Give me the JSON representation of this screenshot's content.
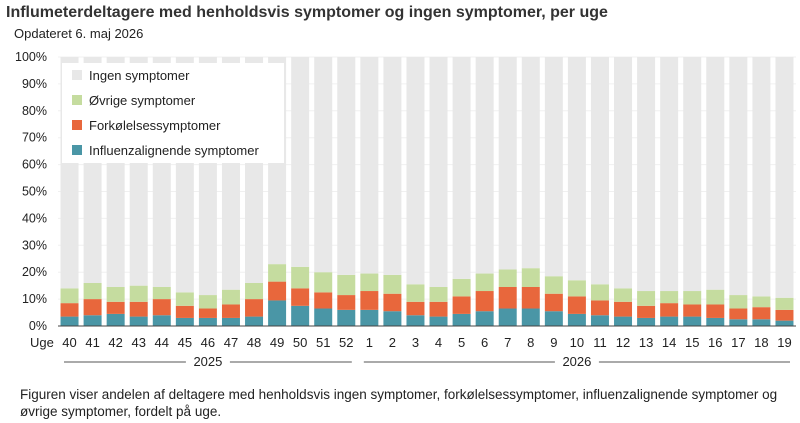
{
  "title": "Influmeterdeltagere med henholdsvis symptomer og ingen symptomer, per uge",
  "subtitle": "Opdateret 6. maj 2026",
  "caption": "Figuren viser andelen af deltagere med henholdsvis ingen symptomer, forkølelsessymptomer, influenzalignende symptomer og øvrige symptomer, fordelt på uge.",
  "colors": {
    "influenza": "#4a96a6",
    "cold": "#e8673c",
    "other": "#c5dc9f",
    "none": "#e8e8e8"
  },
  "chart_data": {
    "type": "bar",
    "stacked": true,
    "xlabel": "Uge",
    "ylabel": "",
    "ylim": [
      0,
      100
    ],
    "y_ticks": [
      "0%",
      "10%",
      "20%",
      "30%",
      "40%",
      "50%",
      "60%",
      "70%",
      "80%",
      "90%",
      "100%"
    ],
    "legend_position": "top-left",
    "categories": [
      "40",
      "41",
      "42",
      "43",
      "44",
      "45",
      "46",
      "47",
      "48",
      "49",
      "50",
      "51",
      "52",
      "1",
      "2",
      "3",
      "4",
      "5",
      "6",
      "7",
      "8",
      "9",
      "10",
      "11",
      "12",
      "13",
      "14",
      "15",
      "16",
      "17",
      "18",
      "19"
    ],
    "year_groups": [
      {
        "label": "2025",
        "from": 0,
        "to": 12
      },
      {
        "label": "2026",
        "from": 13,
        "to": 31
      }
    ],
    "series": [
      {
        "name": "Influenzalignende symptomer",
        "color_key": "influenza",
        "values": [
          3.5,
          4,
          4.5,
          3.5,
          4,
          3,
          3,
          3,
          3.5,
          9.5,
          7.5,
          6.5,
          6,
          6,
          5.5,
          4,
          3.5,
          4.5,
          5.5,
          6.5,
          6.5,
          5.5,
          4.5,
          4,
          3.5,
          3,
          3.5,
          3.5,
          3,
          2.5,
          2.5,
          2
        ]
      },
      {
        "name": "Forkølelsessymptomer",
        "color_key": "cold",
        "values": [
          5,
          6,
          4.5,
          5.5,
          6,
          4.5,
          3.5,
          5,
          6.5,
          7,
          6.5,
          6,
          5.5,
          7,
          6.5,
          5,
          5.5,
          6.5,
          7.5,
          8,
          8,
          6.5,
          6.5,
          5.5,
          5.5,
          4.5,
          5,
          4.5,
          5,
          4,
          4.5,
          4
        ]
      },
      {
        "name": "Øvrige symptomer",
        "color_key": "other",
        "values": [
          5.5,
          6,
          5.5,
          6,
          4.5,
          5,
          5,
          5.5,
          6,
          6.5,
          8,
          7.5,
          7.5,
          6.5,
          7,
          6.5,
          5.5,
          6.5,
          6.5,
          6.5,
          7,
          6.5,
          6,
          6,
          5,
          5.5,
          4.5,
          5,
          5.5,
          5,
          4,
          4.5
        ]
      },
      {
        "name": "Ingen symptomer",
        "color_key": "none",
        "values": [
          86,
          84,
          85.5,
          85,
          85.5,
          87.5,
          88.5,
          86.5,
          84,
          77,
          78,
          80,
          81,
          80.5,
          81,
          84.5,
          85.5,
          82.5,
          80.5,
          79,
          78.5,
          81.5,
          83,
          84.5,
          86,
          87,
          87,
          87,
          86.5,
          88.5,
          89,
          89.5
        ]
      }
    ]
  }
}
